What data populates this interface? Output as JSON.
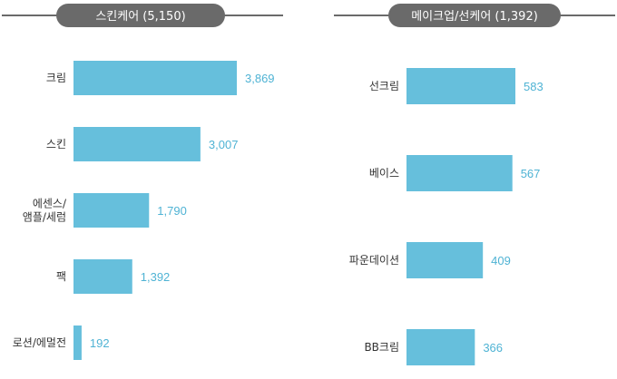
{
  "colors": {
    "bar": "#66bfdc",
    "value_text": "#4fb3d4",
    "pill": "#6a6a6a",
    "rule": "#6a6a6a"
  },
  "chart_data": [
    {
      "type": "bar",
      "orientation": "horizontal",
      "title": "스킨케어 (5,150)",
      "categories": [
        [
          "크림"
        ],
        [
          "스킨"
        ],
        [
          "에센스/",
          "앰플/세럼"
        ],
        [
          "팩"
        ],
        [
          "로션/에멀전"
        ]
      ],
      "values": [
        3869,
        3007,
        1790,
        1392,
        192
      ],
      "value_labels": [
        "3,869",
        "3,007",
        "1,790",
        "1,392",
        "192"
      ],
      "xlim": [
        0,
        3869
      ]
    },
    {
      "type": "bar",
      "orientation": "horizontal",
      "title": "메이크업/선케어 (1,392)",
      "categories": [
        [
          "선크림"
        ],
        [
          "베이스"
        ],
        [
          "파운데이션"
        ],
        [
          "BB크림"
        ]
      ],
      "values": [
        583,
        567,
        409,
        366
      ],
      "value_labels": [
        "583",
        "567",
        "409",
        "366"
      ],
      "xlim": [
        0,
        583
      ]
    }
  ]
}
